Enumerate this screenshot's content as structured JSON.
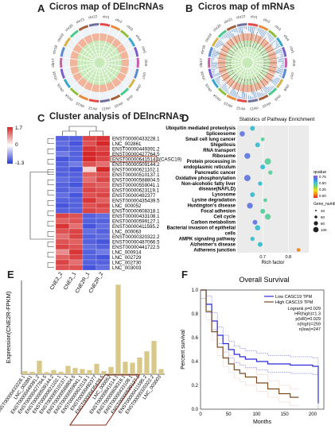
{
  "panels": {
    "a": "A",
    "b": "B",
    "c": "C",
    "d": "D",
    "e": "E",
    "f": "F"
  },
  "circos_a": {
    "title": "Cicros map of DElncRNAs",
    "chromosomes": [
      "chr1",
      "chr2",
      "chr3",
      "chr4",
      "chr5",
      "chr6",
      "chr7",
      "chr8",
      "chr9",
      "chr10",
      "chr11",
      "chr12",
      "chr13",
      "chr14",
      "chr15",
      "chr16",
      "chr17",
      "chr18",
      "chr19",
      "chr20",
      "chr21",
      "chr22"
    ]
  },
  "circos_b": {
    "title": "Cicros map of mRNAs",
    "chromosomes": [
      "chr1",
      "chr2",
      "chr3",
      "chr4",
      "chr5",
      "chr6",
      "chr7",
      "chr8",
      "chr9",
      "chr10",
      "chr11",
      "chr12",
      "chr13",
      "chr14",
      "chr15",
      "chr16",
      "chr17",
      "chr18",
      "chr19",
      "chr20",
      "chr21",
      "chr22"
    ]
  },
  "heatmap": {
    "title": "Cluster analysis of DElncRNAs",
    "scale_labels": [
      "1.7",
      "0",
      "-1.3"
    ],
    "columns": [
      "CNE2_2",
      "CNE2_1",
      "CNE2R_1",
      "CNE2R_2"
    ],
    "highlight_row": "ENST00000641514.1",
    "highlight_note": "(CASC19)",
    "rows": [
      "ENST00000433228.1",
      "LNC_002861",
      "ENST00000449391.2",
      "ENST00000427764.5",
      "ENST00000641514.1",
      "ENST00000509144.2",
      "ENST00000621102.1",
      "ENST00000510137.1",
      "ENST00000588804.5",
      "ENST00000559041.1",
      "ENST00000623119.1",
      "ENST00000492377",
      "ENST00000435439.5",
      "LNC_000052",
      "ENST00000608318.1",
      "ENST00000433108.1",
      "ENST00000599127.1",
      "ENST00000411595.2",
      "LNC_000063",
      "ENST00000320322.2",
      "ENST00000487066.5",
      "ENST00000441722.5",
      "LNC_000914",
      "LNC_002729",
      "LNC_002730",
      "LNC_003003"
    ],
    "values": [
      [
        -1.2,
        -1.2,
        1.3,
        1.4
      ],
      [
        -1.1,
        -1.3,
        1.2,
        1.5
      ],
      [
        -1.2,
        -1.2,
        1.4,
        1.3
      ],
      [
        -1.0,
        -1.2,
        1.5,
        1.4
      ],
      [
        -1.3,
        -1.2,
        1.6,
        1.3
      ],
      [
        -1.2,
        -1.0,
        1.2,
        1.0
      ],
      [
        -1.2,
        -1.3,
        0.3,
        1.6
      ],
      [
        -1.2,
        -1.2,
        1.1,
        1.2
      ],
      [
        -1.1,
        -1.2,
        1.0,
        1.3
      ],
      [
        -1.2,
        -1.3,
        1.2,
        1.1
      ],
      [
        -1.2,
        -1.1,
        1.3,
        1.2
      ],
      [
        -1.1,
        -1.3,
        1.2,
        1.3
      ],
      [
        -1.2,
        -1.2,
        1.4,
        1.1
      ],
      [
        -1.3,
        -1.2,
        1.2,
        1.3
      ],
      [
        -1.2,
        -1.2,
        1.3,
        1.2
      ],
      [
        1.3,
        1.2,
        -1.2,
        -1.1
      ],
      [
        1.1,
        1.2,
        -1.2,
        -1.2
      ],
      [
        1.4,
        1.0,
        -1.3,
        -1.1
      ],
      [
        1.2,
        1.3,
        -1.1,
        -1.2
      ],
      [
        1.0,
        1.3,
        -1.2,
        -1.1
      ],
      [
        1.2,
        1.1,
        -1.2,
        -1.3
      ],
      [
        1.3,
        1.2,
        -1.1,
        -1.2
      ],
      [
        0.8,
        1.4,
        -1.2,
        -1.0
      ],
      [
        1.1,
        1.3,
        -1.2,
        -1.3
      ],
      [
        1.3,
        1.0,
        -1.2,
        -1.2
      ],
      [
        1.2,
        1.2,
        -1.3,
        -1.1
      ]
    ]
  },
  "kegg": {
    "title": "Statistics of Pathway Enrichment",
    "xlabel": "Rich factor",
    "x_ticks": [
      "0.7",
      "0.8"
    ],
    "legend_qvalue_title": "qvalue",
    "legend_qvalue_ticks": [
      "0.75",
      "0.50",
      "0.25",
      "0.00"
    ],
    "legend_gene_title": "Gene_number",
    "legend_gene_values": [
      "40",
      "60",
      "80",
      "100"
    ],
    "pathways": [
      "Ubiquitin mediated proteolysis",
      "Spliceosome",
      "Small cell lung cancer",
      "Shigellosis",
      "RNA transport",
      "Ribosome",
      "Protein processing in",
      "endoplasmic reticulum",
      "Pancreatic cancer",
      "Oxidative phosphorylation",
      "Non-alcoholic fatty liver",
      "disease(NAFLD)",
      "Lysosome",
      "Lysine degradation",
      "Huntington's disease",
      "Focal adhesion",
      "Cell cycle",
      "Carbon metabolism",
      "Bacterial invasion of epithelial",
      "cells",
      "AMPK signaling pathway",
      "Alzheimer's disease",
      "Adherens junction"
    ],
    "points": [
      {
        "rf": 0.66,
        "size": 60,
        "q": 0.4
      },
      {
        "rf": 0.62,
        "size": 70,
        "q": 0.5
      },
      {
        "rf": 0.7,
        "size": 40,
        "q": 0.2
      },
      {
        "rf": 0.68,
        "size": 60,
        "q": 0.35
      },
      {
        "rf": 0.64,
        "size": 80,
        "q": 0.45
      },
      {
        "rf": 0.72,
        "size": 90,
        "q": 0.15
      },
      {
        "rf": 0.7,
        "size": 60,
        "q": 0.3
      },
      {
        "rf": 0.73,
        "size": 50,
        "q": 0.2
      },
      {
        "rf": 0.64,
        "size": 90,
        "q": 0.55
      },
      {
        "rf": 0.69,
        "size": 50,
        "q": 0.35
      },
      {
        "rf": 0.66,
        "size": 60,
        "q": 0.3
      },
      {
        "rf": 0.71,
        "size": 40,
        "q": 0.25
      },
      {
        "rf": 0.65,
        "size": 80,
        "q": 0.5
      },
      {
        "rf": 0.7,
        "size": 60,
        "q": 0.2
      },
      {
        "rf": 0.72,
        "size": 80,
        "q": 0.15
      },
      {
        "rf": 0.67,
        "size": 60,
        "q": 0.45
      },
      {
        "rf": 0.68,
        "size": 70,
        "q": 0.4
      },
      {
        "rf": 0.66,
        "size": 50,
        "q": 0.35
      },
      {
        "rf": 0.69,
        "size": 60,
        "q": 0.3
      },
      {
        "rf": 0.84,
        "size": 40,
        "q": 0.05
      }
    ]
  },
  "bar": {
    "ylabel": "Expression(CNE2R-FPKM)",
    "categories": [
      "ENST00000433228.1",
      "LNC_002861",
      "ENST00000449391.2",
      "ENST00000427764.5",
      "ENST00000509144.2",
      "ENST00000621102.1",
      "ENST00000510137.1",
      "ENST00000588804.5",
      "ENST00000559041.1",
      "ENST00000623119.1",
      "ENST00000492377",
      "ENST00000435439.5",
      "LNC_000052",
      "ENST00000641514.1",
      "ENST00000608318.1",
      "ENST00000433108.1",
      "ENST00000599127.1",
      "ENST00000411595.2",
      "ENST00000320322.2",
      "LNC_003003"
    ],
    "values": [
      1.5,
      1.2,
      6.5,
      1.0,
      2.0,
      1.2,
      4.0,
      3.0,
      2.5,
      2.0,
      5.0,
      1.5,
      3.5,
      43,
      6.0,
      5.5,
      8.0,
      11,
      16,
      2.5
    ],
    "highlight_range": [
      11,
      15
    ],
    "ymax": 45
  },
  "survival": {
    "title": "Overall Survival",
    "xlabel": "Months",
    "ylabel": "Percent survival",
    "x_ticks": [
      "0",
      "50",
      "100",
      "150",
      "200"
    ],
    "y_ticks": [
      "0.0",
      "0.2",
      "0.4",
      "0.6",
      "0.8",
      "1.0"
    ],
    "legend": [
      "Low CASC19 TPM",
      "High CASC19 TPM"
    ],
    "stats": [
      "Logrank p=0.029",
      "HR(high)=1.3",
      "p(HR)=0.029",
      "n(high)=259",
      "n(low)=247"
    ],
    "low_curve": [
      [
        0,
        1.0
      ],
      [
        10,
        0.88
      ],
      [
        20,
        0.74
      ],
      [
        30,
        0.62
      ],
      [
        40,
        0.55
      ],
      [
        50,
        0.5
      ],
      [
        60,
        0.46
      ],
      [
        70,
        0.44
      ],
      [
        80,
        0.42
      ],
      [
        100,
        0.4
      ],
      [
        120,
        0.38
      ],
      [
        140,
        0.38
      ],
      [
        160,
        0.37
      ],
      [
        180,
        0.37
      ],
      [
        200,
        0.36
      ],
      [
        210,
        0.05
      ]
    ],
    "high_curve": [
      [
        0,
        1.0
      ],
      [
        10,
        0.82
      ],
      [
        20,
        0.65
      ],
      [
        30,
        0.52
      ],
      [
        40,
        0.43
      ],
      [
        50,
        0.38
      ],
      [
        60,
        0.33
      ],
      [
        70,
        0.3
      ],
      [
        80,
        0.27
      ],
      [
        100,
        0.22
      ],
      [
        120,
        0.17
      ],
      [
        140,
        0.13
      ],
      [
        160,
        0.1
      ],
      [
        175,
        0.1
      ]
    ]
  },
  "colors": {
    "heat_high": "#d62728",
    "heat_mid": "#ffffff",
    "heat_low": "#2a3bd6",
    "low_line": "#2b2bd6",
    "high_line": "#7a4a20",
    "bar": "#d8c98a",
    "highlight_box": "#8b2f1f"
  }
}
